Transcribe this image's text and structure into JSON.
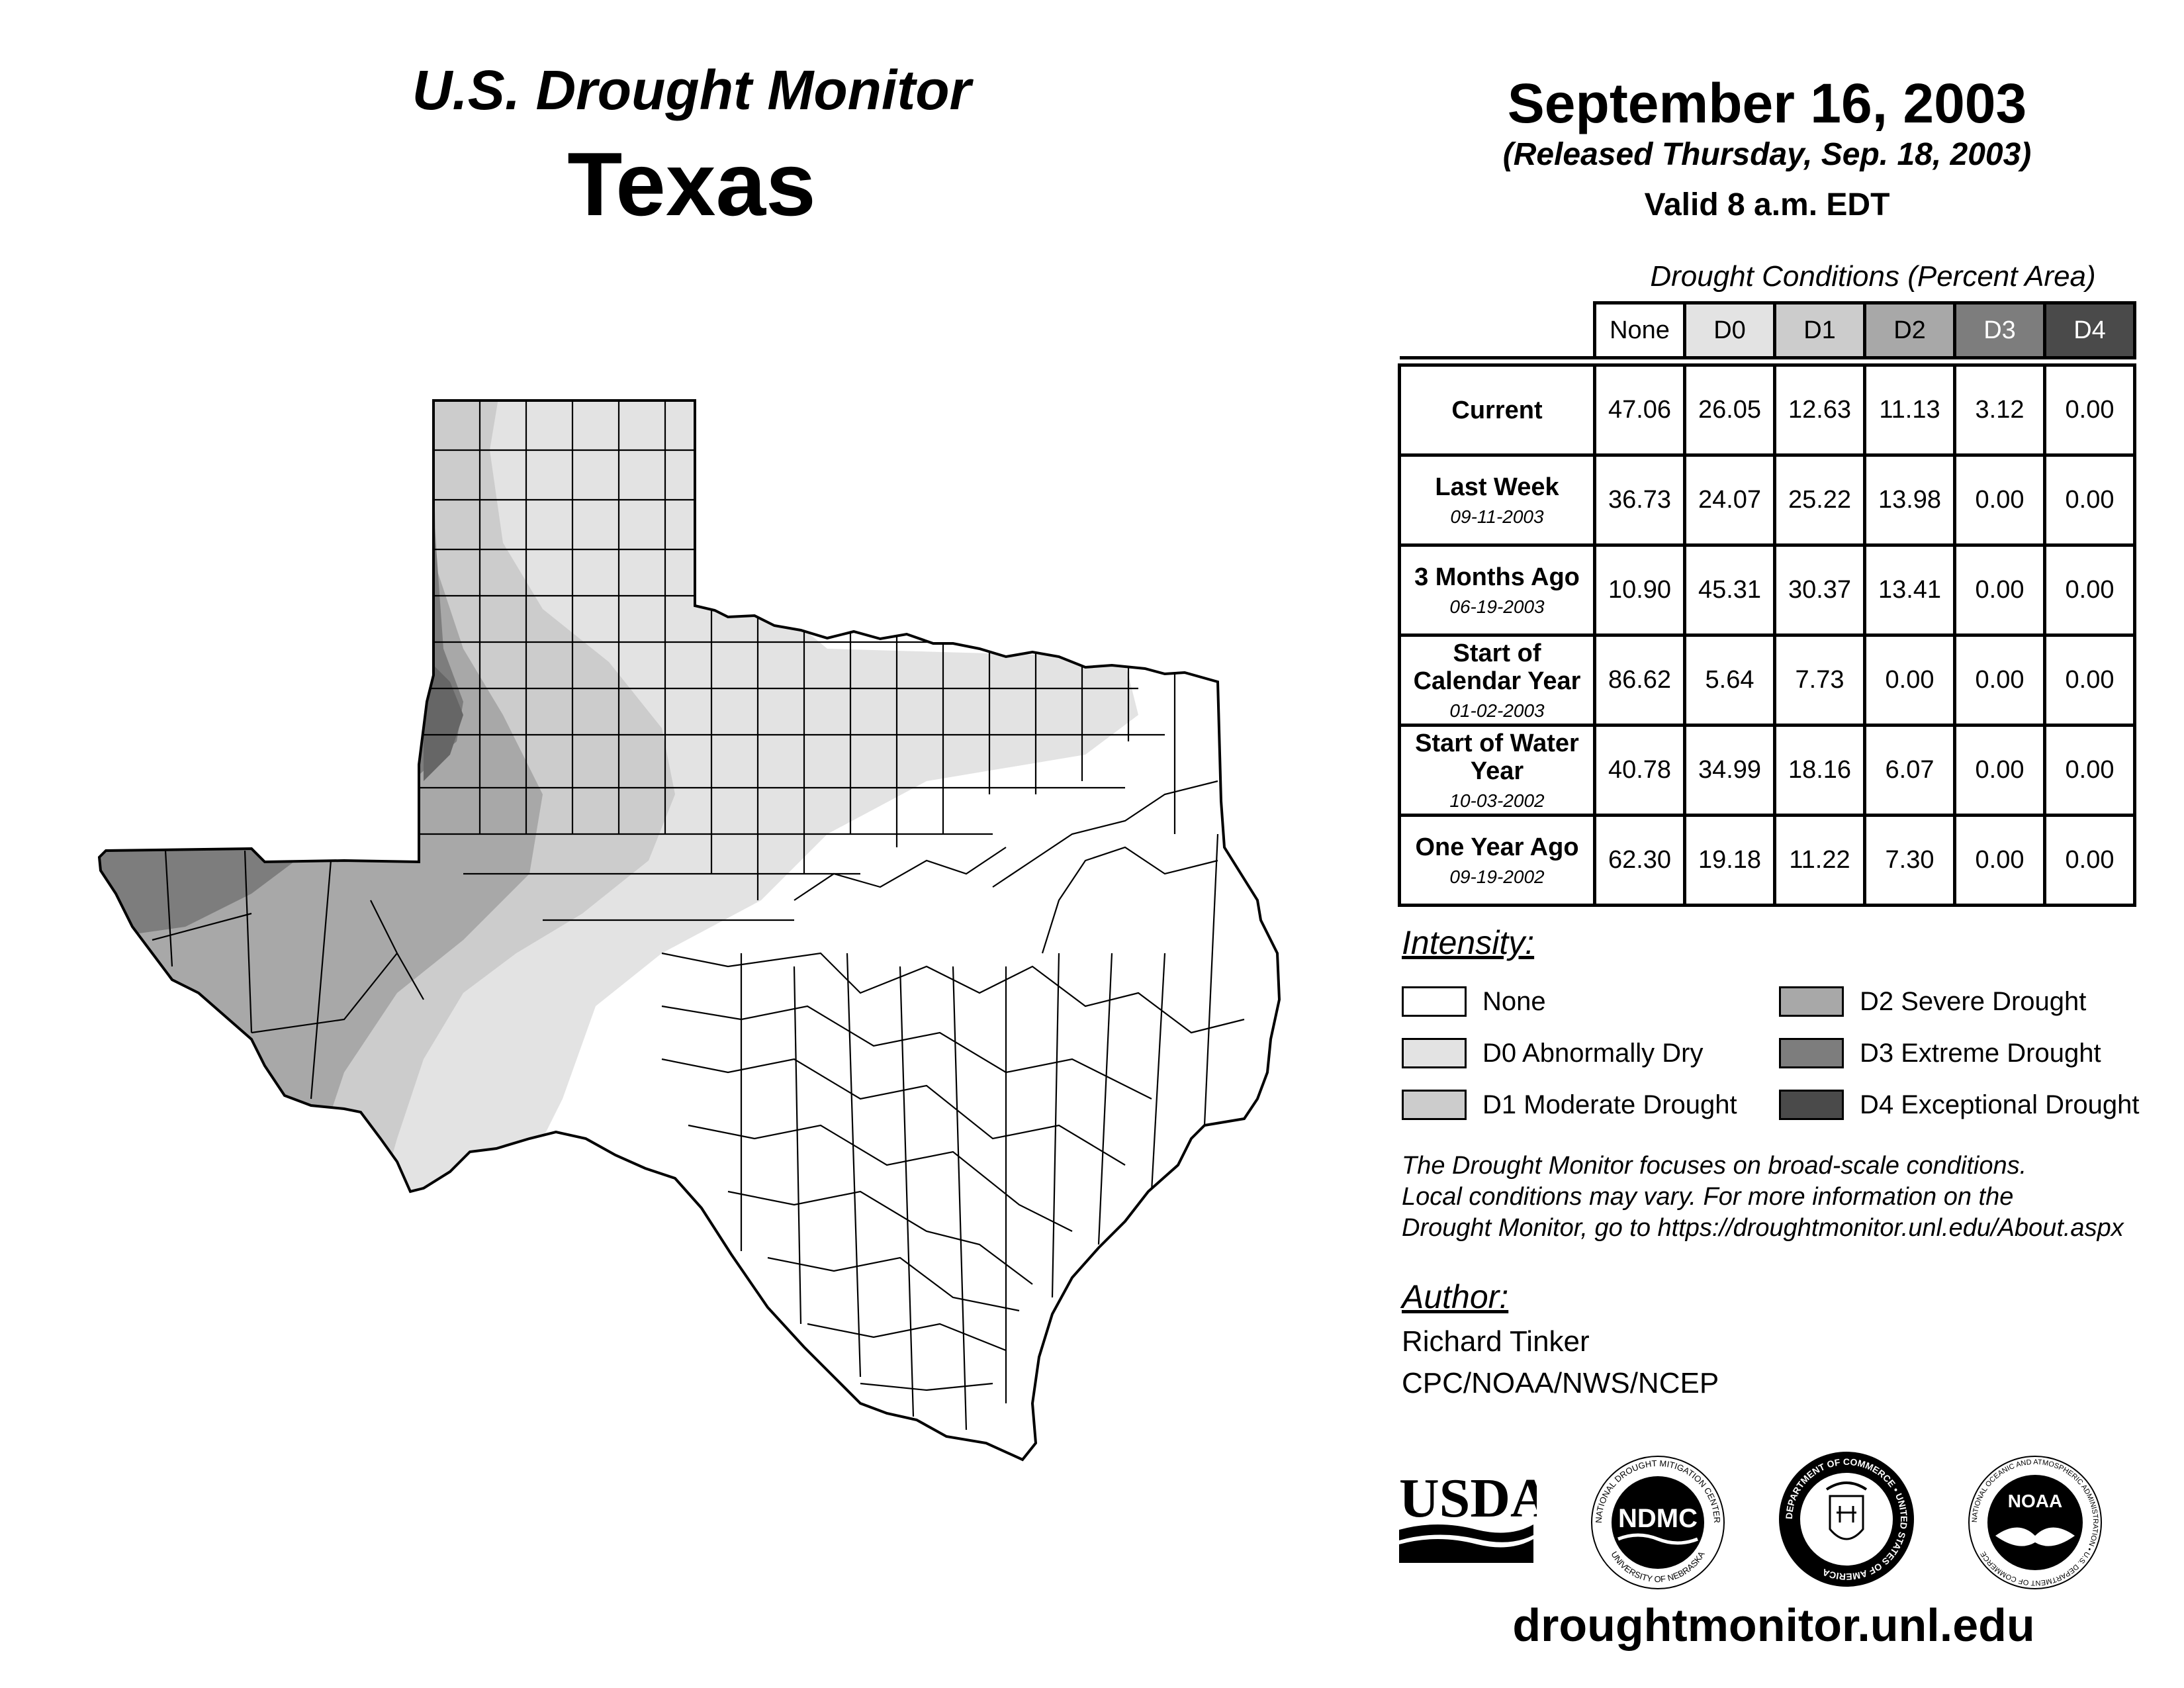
{
  "header": {
    "title": "U.S. Drought Monitor",
    "state": "Texas",
    "date": "September 16, 2003",
    "released": "(Released Thursday, Sep. 18, 2003)",
    "valid": "Valid 8 a.m. EDT"
  },
  "table": {
    "caption": "Drought Conditions (Percent Area)",
    "columns": [
      "None",
      "D0",
      "D1",
      "D2",
      "D3",
      "D4"
    ],
    "rows": [
      {
        "label": "Current",
        "date": "",
        "values": [
          "47.06",
          "26.05",
          "12.63",
          "11.13",
          "3.12",
          "0.00"
        ]
      },
      {
        "label": "Last Week",
        "date": "09-11-2003",
        "values": [
          "36.73",
          "24.07",
          "25.22",
          "13.98",
          "0.00",
          "0.00"
        ]
      },
      {
        "label": "3 Months Ago",
        "date": "06-19-2003",
        "values": [
          "10.90",
          "45.31",
          "30.37",
          "13.41",
          "0.00",
          "0.00"
        ]
      },
      {
        "label": "Start of Calendar Year",
        "date": "01-02-2003",
        "values": [
          "86.62",
          "5.64",
          "7.73",
          "0.00",
          "0.00",
          "0.00"
        ]
      },
      {
        "label": "Start of Water Year",
        "date": "10-03-2002",
        "values": [
          "40.78",
          "34.99",
          "18.16",
          "6.07",
          "0.00",
          "0.00"
        ]
      },
      {
        "label": "One Year Ago",
        "date": "09-19-2002",
        "values": [
          "62.30",
          "19.18",
          "11.22",
          "7.30",
          "0.00",
          "0.00"
        ]
      }
    ]
  },
  "legend": {
    "heading": "Intensity:",
    "items": [
      {
        "label": "None",
        "color": "#ffffff"
      },
      {
        "label": "D0 Abnormally Dry",
        "color": "#e3e3e3"
      },
      {
        "label": "D1 Moderate Drought",
        "color": "#cccccc"
      },
      {
        "label": "D2 Severe Drought",
        "color": "#a8a8a8"
      },
      {
        "label": "D3 Extreme Drought",
        "color": "#7d7d7d"
      },
      {
        "label": "D4 Exceptional Drought",
        "color": "#4a4a4a"
      }
    ]
  },
  "note": {
    "line1": "The Drought Monitor focuses on broad-scale conditions.",
    "line2": "Local conditions may vary. For more information on the",
    "line3": "Drought Monitor, go to https://droughtmonitor.unl.edu/About.aspx"
  },
  "author": {
    "heading": "Author:",
    "name": "Richard Tinker",
    "org": "CPC/NOAA/NWS/NCEP"
  },
  "logos": {
    "usda": "USDA",
    "ndmc": "NDMC",
    "ndmc_ring_top": "NATIONAL DROUGHT MITIGATION CENTER",
    "ndmc_ring_bottom": "UNIVERSITY OF NEBRASKA",
    "doc_ring": "DEPARTMENT OF COMMERCE • UNITED STATES OF AMERICA",
    "noaa": "NOAA",
    "noaa_ring": "NATIONAL OCEANIC AND ATMOSPHERIC ADMINISTRATION • U.S. DEPARTMENT OF COMMERCE"
  },
  "footer": {
    "url": "droughtmonitor.unl.edu"
  },
  "map": {
    "region": "Texas",
    "fill_none": "#ffffff",
    "fill_d0": "#e3e3e3",
    "fill_d1": "#cccccc",
    "fill_d2": "#a8a8a8",
    "fill_d3": "#7d7d7d"
  }
}
